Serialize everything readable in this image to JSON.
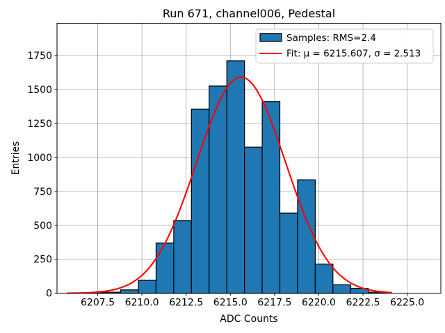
{
  "title": "Run 671, channel006, Pedestal",
  "xlabel": "ADC Counts",
  "ylabel": "Entries",
  "legend": {
    "samples_label": "Samples: RMS=2.4",
    "fit_label": "Fit: μ = 6215.607, σ = 2.513"
  },
  "chart_data": {
    "type": "bar",
    "subtype": "histogram-with-gaussian-fit",
    "title": "Run 671, channel006, Pedestal",
    "xlabel": "ADC Counts",
    "ylabel": "Entries",
    "bin_edges": [
      6206.8,
      6207.8,
      6208.8,
      6209.8,
      6210.8,
      6211.8,
      6212.8,
      6213.8,
      6214.8,
      6215.8,
      6216.8,
      6217.8,
      6218.8,
      6219.8,
      6220.8,
      6221.8,
      6222.8,
      6223.8
    ],
    "values": [
      3,
      8,
      25,
      95,
      370,
      535,
      1355,
      1525,
      1710,
      1075,
      1410,
      590,
      835,
      215,
      62,
      36,
      8
    ],
    "fit": {
      "mu": 6215.607,
      "sigma": 2.513,
      "amplitude": 1590,
      "x_start": 6205.8,
      "x_end": 6224.1,
      "rms_label_value": 2.4
    },
    "xlim": [
      6205.2,
      6226.9
    ],
    "ylim": [
      0,
      1987
    ],
    "xticks": [
      6207.5,
      6210.0,
      6212.5,
      6215.0,
      6217.5,
      6220.0,
      6222.5,
      6225.0
    ],
    "yticks": [
      0,
      250,
      500,
      750,
      1000,
      1250,
      1500,
      1750
    ],
    "grid": true,
    "legend_position": "upper right",
    "legend_entries": [
      "Samples: RMS=2.4",
      "Fit: μ = 6215.607, σ = 2.513"
    ],
    "colors": {
      "bar_fill": "#1f77b4",
      "bar_edge": "#000000",
      "fit_line": "#ff0000",
      "grid": "#b0b0b0",
      "spine": "#000000",
      "legend_border": "#cccccc",
      "background": "#ffffff"
    }
  }
}
